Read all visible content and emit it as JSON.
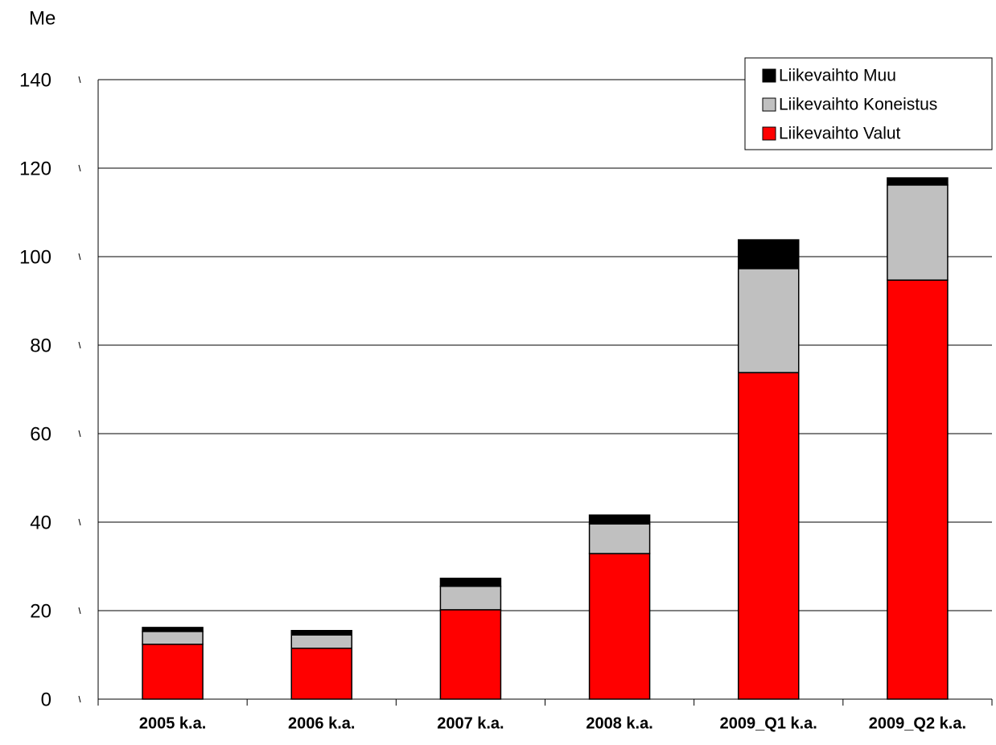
{
  "chart_data": {
    "type": "stacked-bar",
    "title": "Me",
    "categories": [
      "2005 k.a.",
      "2006 k.a.",
      "2007 k.a.",
      "2008 k.a.",
      "2009_Q1 k.a.",
      "2009_Q2 k.a."
    ],
    "series": [
      {
        "name": "Liikevaihto Valut",
        "color": "#ff0000",
        "values": [
          12.4,
          11.5,
          20.2,
          32.9,
          73.8,
          94.7
        ]
      },
      {
        "name": "Liikevaihto Koneistus",
        "color": "#c0c0c0",
        "values": [
          2.9,
          3.0,
          5.3,
          6.7,
          23.5,
          21.5
        ]
      },
      {
        "name": "Liikevaihto Muu",
        "color": "#000000",
        "values": [
          0.9,
          1.0,
          1.8,
          2.0,
          6.5,
          1.6
        ]
      }
    ],
    "ylim": [
      0,
      140
    ],
    "yticks": [
      0,
      20,
      40,
      60,
      80,
      100,
      120,
      140
    ],
    "grid": true,
    "legend": "top-right"
  }
}
